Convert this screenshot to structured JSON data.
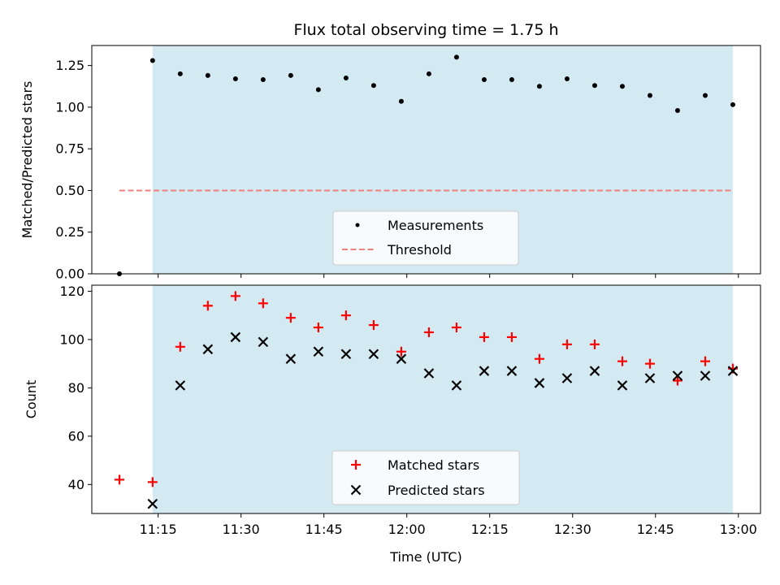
{
  "chart_data": [
    {
      "type": "scatter",
      "title": "Flux total observing time = 1.75 h",
      "ylabel": "Matched/Predicted stars",
      "xlabel": "",
      "ylim": [
        0,
        1.37
      ],
      "yticks": [
        "0.00",
        "0.25",
        "0.50",
        "0.75",
        "1.00",
        "1.25"
      ],
      "ytick_values": [
        0,
        0.25,
        0.5,
        0.75,
        1.0,
        1.25
      ],
      "x_range_minutes": [
        663,
        784
      ],
      "grid": false,
      "legend_placement": "lower-center",
      "shaded_span_minutes": [
        674,
        779
      ],
      "shaded_color": "#add8e6",
      "series": [
        {
          "name": "Measurements",
          "marker": "dot",
          "color": "#000000",
          "x": [
            "11:08",
            "11:14",
            "11:19",
            "11:24",
            "11:29",
            "11:34",
            "11:39",
            "11:44",
            "11:49",
            "11:54",
            "11:59",
            "12:04",
            "12:09",
            "12:14",
            "12:19",
            "12:24",
            "12:29",
            "12:34",
            "12:39",
            "12:44",
            "12:49",
            "12:54",
            "12:59"
          ],
          "values": [
            0.0,
            1.28,
            1.2,
            1.19,
            1.17,
            1.165,
            1.19,
            1.105,
            1.175,
            1.13,
            1.035,
            1.2,
            1.3,
            1.165,
            1.165,
            1.125,
            1.17,
            1.13,
            1.125,
            1.07,
            0.98,
            1.07,
            1.015
          ]
        },
        {
          "name": "Threshold",
          "marker": "dashed-line",
          "color": "#f08080",
          "x": [
            "11:08",
            "12:59"
          ],
          "values": [
            0.5,
            0.5
          ]
        }
      ]
    },
    {
      "type": "scatter",
      "title": "",
      "ylabel": "Count",
      "xlabel": "Time (UTC)",
      "ylim": [
        28,
        122.5
      ],
      "yticks": [
        "40",
        "60",
        "80",
        "100",
        "120"
      ],
      "ytick_values": [
        40,
        60,
        80,
        100,
        120
      ],
      "xticks": [
        "11:15",
        "11:30",
        "11:45",
        "12:00",
        "12:15",
        "12:30",
        "12:45",
        "13:00"
      ],
      "xtick_minutes": [
        675,
        690,
        705,
        720,
        735,
        750,
        765,
        780
      ],
      "x_range_minutes": [
        663,
        784
      ],
      "grid": false,
      "legend_placement": "lower-center",
      "shaded_span_minutes": [
        674,
        779
      ],
      "shaded_color": "#add8e6",
      "series": [
        {
          "name": "Matched stars",
          "marker": "plus",
          "color": "#ff0000",
          "x": [
            "11:08",
            "11:14",
            "11:19",
            "11:24",
            "11:29",
            "11:34",
            "11:39",
            "11:44",
            "11:49",
            "11:54",
            "11:59",
            "12:04",
            "12:09",
            "12:14",
            "12:19",
            "12:24",
            "12:29",
            "12:34",
            "12:39",
            "12:44",
            "12:49",
            "12:54",
            "12:59"
          ],
          "values": [
            42,
            41,
            97,
            114,
            118,
            115,
            109,
            105,
            110,
            106,
            95,
            103,
            105,
            101,
            101,
            92,
            98,
            98,
            91,
            90,
            83,
            91,
            88
          ]
        },
        {
          "name": "Predicted stars",
          "marker": "x",
          "color": "#000000",
          "x": [
            "11:14",
            "11:19",
            "11:24",
            "11:29",
            "11:34",
            "11:39",
            "11:44",
            "11:49",
            "11:54",
            "11:59",
            "12:04",
            "12:09",
            "12:14",
            "12:19",
            "12:24",
            "12:29",
            "12:34",
            "12:39",
            "12:44",
            "12:49",
            "12:54",
            "12:59"
          ],
          "values": [
            32,
            81,
            96,
            101,
            99,
            92,
            95,
            94,
            94,
            92,
            86,
            81,
            87,
            87,
            82,
            84,
            87,
            81,
            84,
            85,
            85,
            87
          ]
        }
      ]
    }
  ]
}
